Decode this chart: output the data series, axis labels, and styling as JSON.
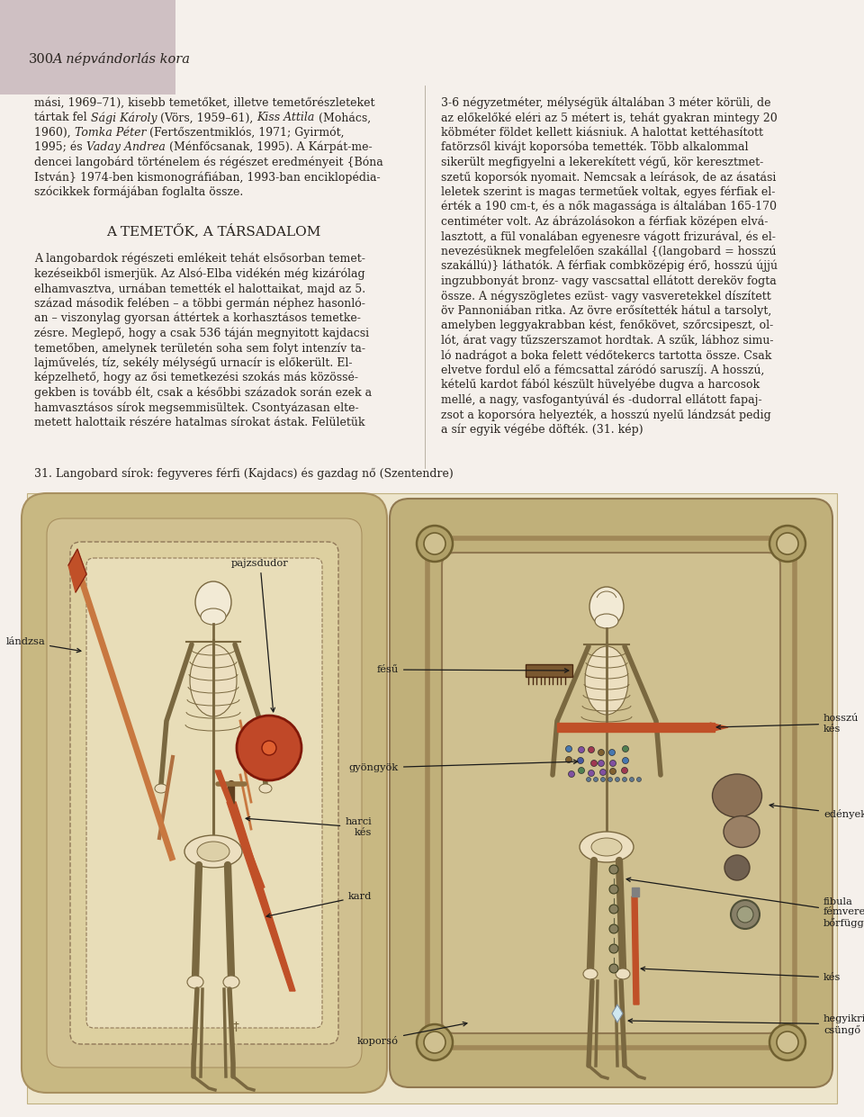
{
  "page_bg": "#f5f0eb",
  "header_bg": "#cfc0c3",
  "text_dark": "#2a2520",
  "ill_bg": "#ede5cc",
  "grave_l_bg": "#c8b882",
  "grave_l_inner": "#d8cc9a",
  "grave_r_bg": "#c0b07a",
  "grave_r_inner": "#cdc099",
  "coffin_r_bg": "#c8b882",
  "skeleton_color": "#b8a870",
  "skeleton_edge": "#7a6840",
  "weapon_color": "#c05028",
  "page_num": "300",
  "page_title": "A népvándorlás kora",
  "caption": "31. Langobard sírok: fegyveres férfi (Kajdacs) és gazdag nő (Szentendre)",
  "section_title": "A TEMETŐK, A TÁRSADALOM",
  "left_para1": [
    "mási, 1969–71), kisebb temetőket, illetve temetőrészleteket",
    "tártak fel {Sági Károly} (Vörs, 1959–61), {Kiss Attila} (Mohács,",
    "1960), {Tomka Péter} (Fertőszentmiklós, 1971; Gyirmót,",
    "1995; és {Vaday Andrea} (Ménfőcsanak, 1995). A Kárpát-me-",
    "dencei langobárd történelem és régészet eredményeit {Bóna",
    "István} 1974-ben kismonográfiában, 1993-ban enciklopédia-",
    "szócikkek formájában foglalta össze."
  ],
  "left_para2": [
    "A langobardok régészeti emlékeit tehát elsősorban temet-",
    "kezéseikből ismerjük. Az Alsó-Elba vidékén még kizárólag",
    "elhamvasztva, urnában temették el halottaikat, majd az 5.",
    "század második felében – a többi germán néphez hasonló-",
    "an – viszonylag gyorsan áttértek a korhasztásos temetke-",
    "zésre. Meglepő, hogy a csak 536 táján megnyitott kajdacsi",
    "temetőben, amelynek területén soha sem folyt intenzív ta-",
    "lajművelés, tíz, sekély mélységű urnасír is előkerült. El-",
    "képzelhető, hogy az ősi temetkezési szokás más közössé-",
    "gekben is tovább élt, csak a későbbi századok során ezek a",
    "hamvasztásos sírok megsemmisültek. Csontyázasan elte-",
    "metett halottaik részére hatalmas sírokat ástak. Felületük"
  ],
  "right_para": [
    "3-6 négyzetméter, mélységük általában 3 méter körüli, de",
    "az előkelőké eléri az 5 métert is, tehát gyakran mintegy 20",
    "köbméter földet kellett kiásniuk. A halottat kettéhasított",
    "fatörzsől kivájt koporsóba temették. Több alkalommal",
    "sikerült megfigyelni a lekerekített végű, kör keresztmet-",
    "szetű koporsók nyomait. Nemcsak a leírások, de az ásatási",
    "leletek szerint is magas termetűek voltak, egyes férfiak el-",
    "érték a 190 cm-t, és a nők magassága is általában 165-170",
    "centiméter volt. Az ábrázolásokon a férfiak középen elvá-",
    "lasztott, a fül vonalában egyenesre vágott frizurával, és el-",
    "nevezésüknek megfelelően szakállal {(langobard = hosszú",
    "szakállú)} láthatók. A férfiak combközépig érő, hosszú újjú",
    "ingzubbonyát bronz- vagy vascsattal ellátott dereköv fogta",
    "össze. A négyszögletes ezüst- vagy vasveretekkel díszített",
    "öv Pannoniában ritka. Az övre erősítették hátul a tarsolyt,",
    "amelyben leggyakrabban kést, fenőkövet, szőrcsipeszt, ol-",
    "lót, árat vagy tűzszerszamot hordtak. A szűk, lábhoz simu-",
    "ló nadrágot a boka felett védőtekercs tartotta össze. Csak",
    "elvetve fordul elő a fémcsattal záródó saruszíj. A hosszú,",
    "kételű kardot fából készült hüvelyébe dugva a harcosok",
    "mellé, a nagy, vasfogantyúvál és -dudorral ellátott fapaj-",
    "zsot a koporsóra helyezték, a hosszú nyelű lándzsát pedig",
    "a sír egyik végébe döfték. (31. kép)"
  ]
}
